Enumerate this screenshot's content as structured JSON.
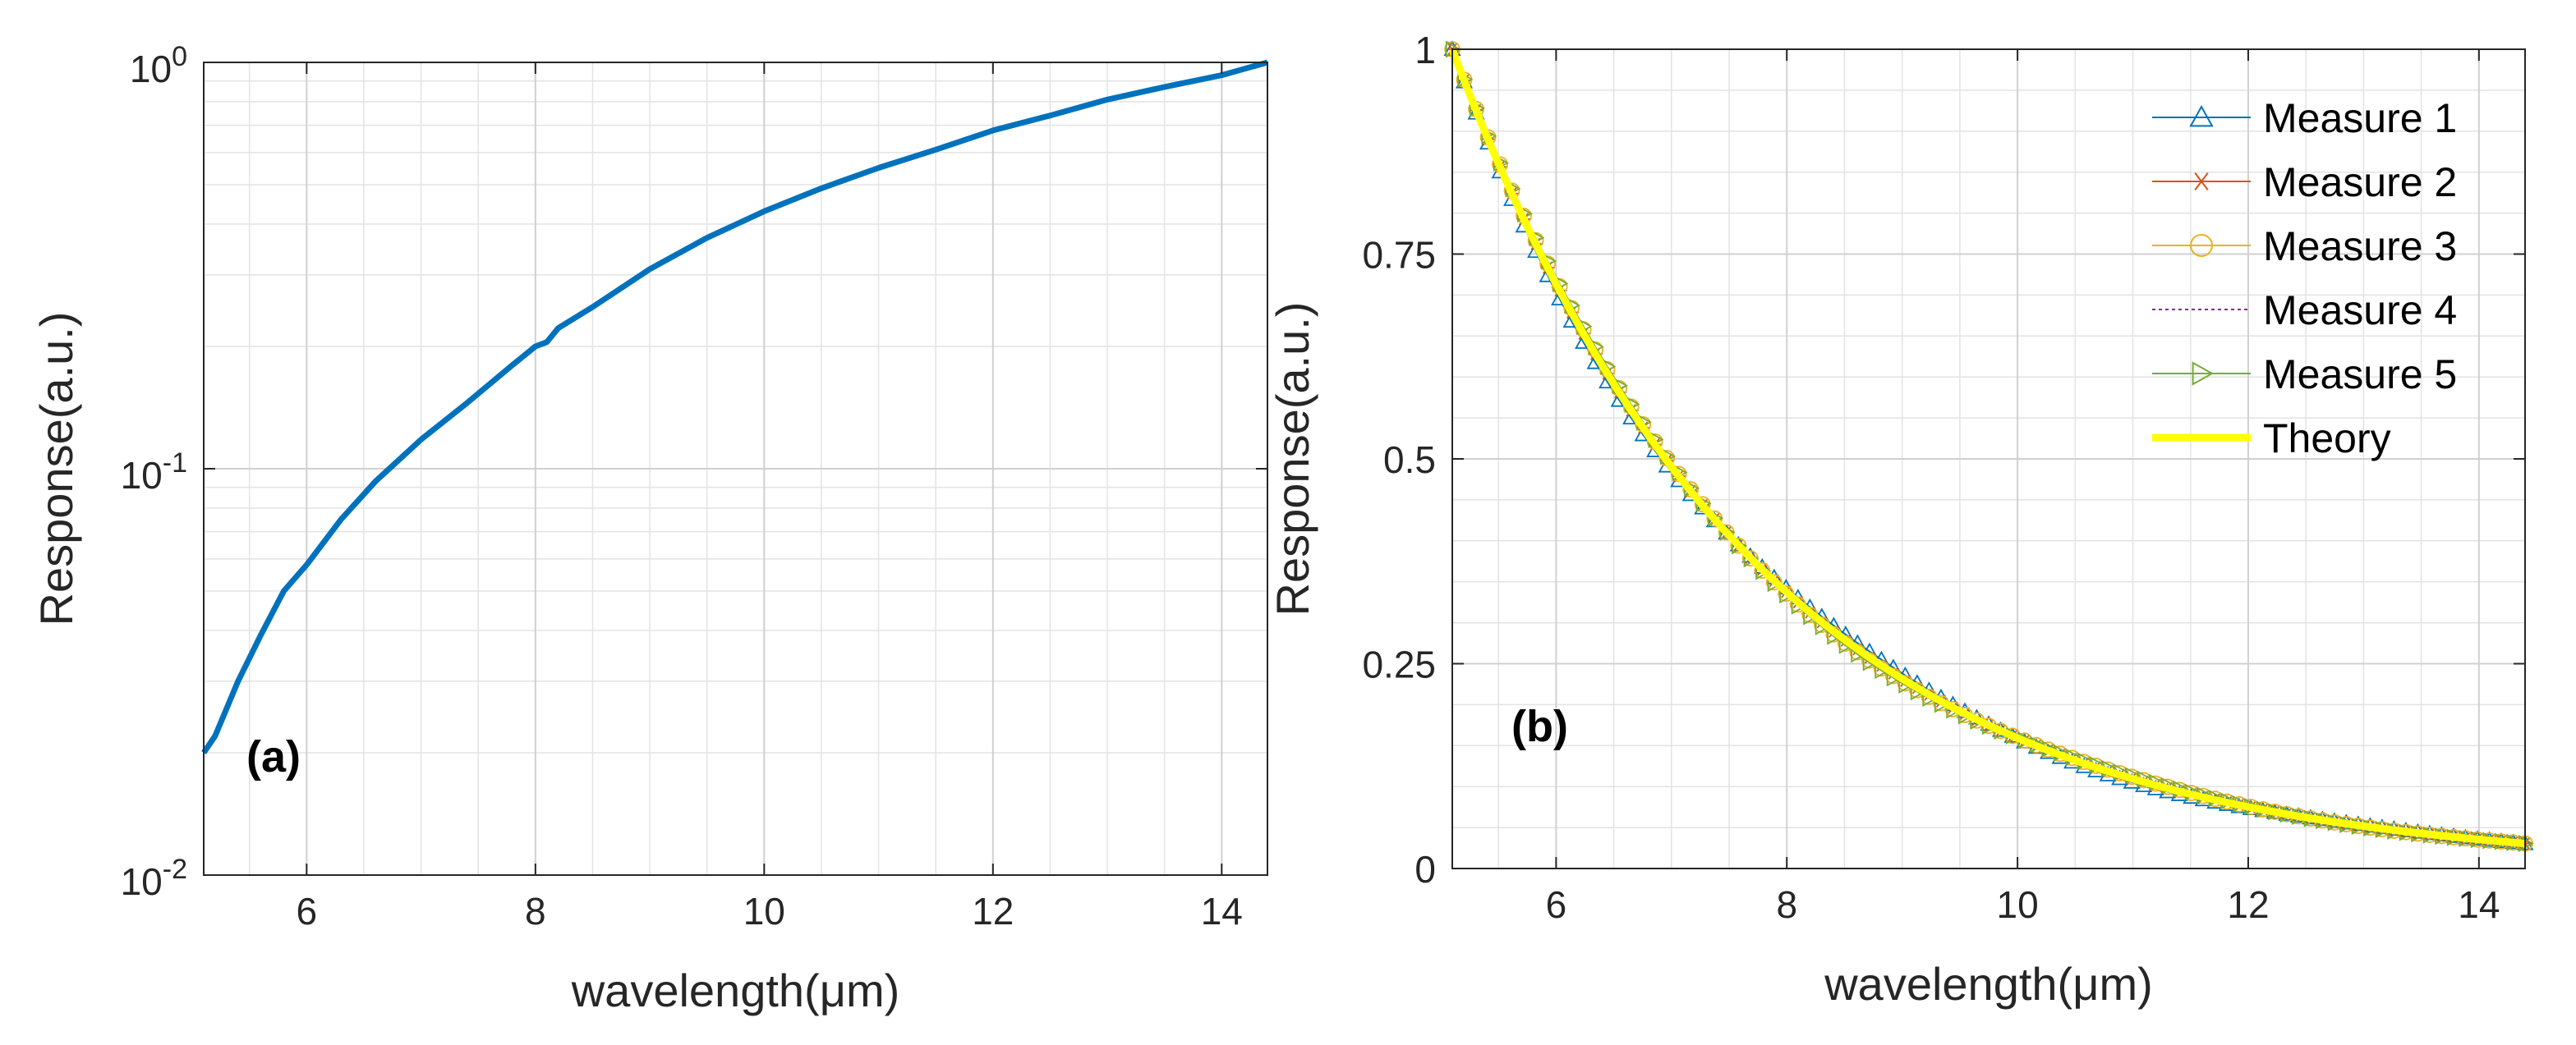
{
  "chart_data": [
    {
      "type": "line",
      "panel_label": "(a)",
      "xlabel": "wavelength(μm)",
      "ylabel": "Response(a.u.)",
      "yscale": "log",
      "xlim": [
        5.1,
        14.4
      ],
      "ylim": [
        0.01,
        1
      ],
      "xticks": [
        6,
        8,
        10,
        12,
        14
      ],
      "xtick_labels": [
        "6",
        "8",
        "10",
        "12",
        "14"
      ],
      "yticks": [
        0.01,
        0.1,
        1
      ],
      "ytick_base": "10",
      "ytick_exponents": [
        "-2",
        "-1",
        "0"
      ],
      "grid": true,
      "series": [
        {
          "name": "Response",
          "color": "#0072BD",
          "x": [
            5.1,
            5.2,
            5.4,
            5.6,
            5.8,
            6.0,
            6.3,
            6.6,
            7.0,
            7.4,
            7.8,
            8.0,
            8.1,
            8.2,
            8.5,
            9.0,
            9.5,
            10.0,
            10.5,
            11.0,
            11.5,
            12.0,
            12.5,
            13.0,
            13.5,
            14.0,
            14.4
          ],
          "y": [
            0.02,
            0.022,
            0.03,
            0.039,
            0.05,
            0.058,
            0.075,
            0.093,
            0.118,
            0.145,
            0.18,
            0.2,
            0.205,
            0.222,
            0.25,
            0.31,
            0.37,
            0.43,
            0.49,
            0.55,
            0.61,
            0.68,
            0.74,
            0.81,
            0.87,
            0.93,
            1.0
          ]
        }
      ]
    },
    {
      "type": "line",
      "panel_label": "(b)",
      "xlabel": "wavelength(μm)",
      "ylabel": "Response(a.u.)",
      "xlim": [
        5.1,
        14.4
      ],
      "ylim": [
        0,
        1
      ],
      "xticks": [
        6,
        8,
        10,
        12,
        14
      ],
      "xtick_labels": [
        "6",
        "8",
        "10",
        "12",
        "14"
      ],
      "yticks": [
        0,
        0.25,
        0.5,
        0.75,
        1
      ],
      "ytick_labels": [
        "0",
        "0.25",
        "0.5",
        "0.75",
        "1"
      ],
      "grid": true,
      "legend_position": "top-right",
      "theory_decay": 0.375,
      "series": [
        {
          "name": "Measure 1",
          "color": "#0072BD",
          "marker": "triangle-up",
          "style": "solid",
          "offset": -0.012
        },
        {
          "name": "Measure 2",
          "color": "#D95319",
          "marker": "asterisk",
          "style": "solid",
          "offset": 0.0
        },
        {
          "name": "Measure 3",
          "color": "#EDB120",
          "marker": "circle",
          "style": "solid",
          "offset": 0.006
        },
        {
          "name": "Measure 4",
          "color": "#7E2F8E",
          "marker": "none",
          "style": "dotted",
          "offset": 0.002
        },
        {
          "name": "Measure 5",
          "color": "#77AC30",
          "marker": "triangle-right",
          "style": "solid",
          "offset": 0.01
        },
        {
          "name": "Theory",
          "color": "#FFFF00",
          "marker": "none",
          "style": "thick",
          "offset": 0.0
        }
      ]
    }
  ]
}
